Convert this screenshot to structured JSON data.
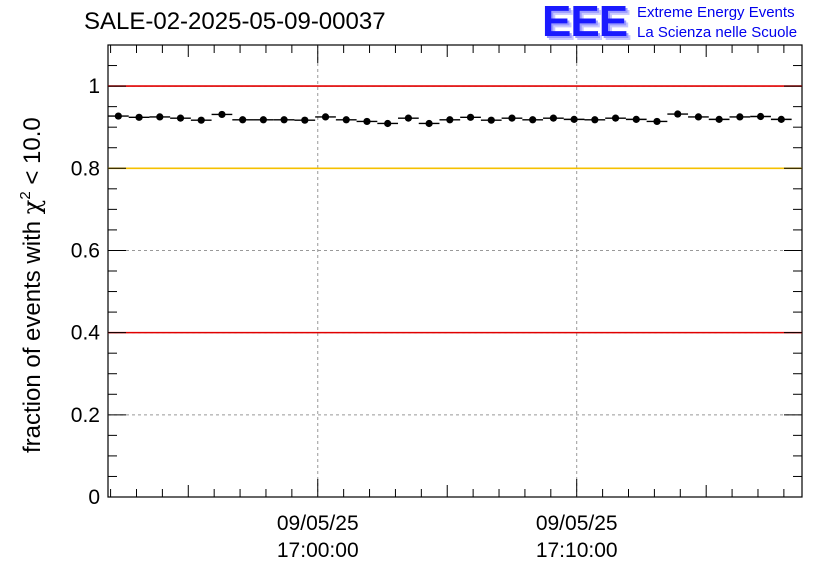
{
  "header": {
    "title": "SALE-02-2025-05-09-00037",
    "logo_text": "EEE",
    "logo_line1": "Extreme Energy Events",
    "logo_line2": "La Scienza nelle Scuole"
  },
  "chart_data": {
    "type": "scatter",
    "title": "SALE-02-2025-05-09-00037",
    "ylabel": "fraction of events with χ² < 10.0",
    "ylabel_main": "fraction of events with ",
    "ylabel_chi": "χ",
    "ylabel_sup": "2",
    "ylabel_tail": " < 10.0",
    "ylim": [
      0,
      1.1
    ],
    "xlim_minutes": [
      -8.1,
      18.7
    ],
    "yticks": [
      {
        "value": 0,
        "label": "0"
      },
      {
        "value": 0.2,
        "label": "0.2"
      },
      {
        "value": 0.4,
        "label": "0.4"
      },
      {
        "value": 0.6,
        "label": "0.6"
      },
      {
        "value": 0.8,
        "label": "0.8"
      },
      {
        "value": 1.0,
        "label": "1"
      }
    ],
    "xticks": [
      {
        "minutes": 0,
        "date": "09/05/25",
        "time": "17:00:00"
      },
      {
        "minutes": 10,
        "date": "09/05/25",
        "time": "17:10:00"
      }
    ],
    "grid": true,
    "reference_lines": [
      {
        "y": 1.0,
        "color": "#e00000"
      },
      {
        "y": 0.8,
        "color": "#f5c000"
      },
      {
        "y": 0.4,
        "color": "#e00000"
      }
    ],
    "bin_width_minutes": 0.8,
    "series": [
      {
        "name": "fraction",
        "color": "#000000",
        "x_minutes": [
          -7.7,
          -6.9,
          -6.1,
          -5.3,
          -4.5,
          -3.7,
          -2.9,
          -2.1,
          -1.3,
          -0.5,
          0.3,
          1.1,
          1.9,
          2.7,
          3.5,
          4.3,
          5.1,
          5.9,
          6.7,
          7.5,
          8.3,
          9.1,
          9.9,
          10.7,
          11.5,
          12.3,
          13.1,
          13.9,
          14.7,
          15.5,
          16.3,
          17.1,
          17.9
        ],
        "y": [
          0.927,
          0.924,
          0.925,
          0.922,
          0.917,
          0.931,
          0.918,
          0.918,
          0.918,
          0.917,
          0.925,
          0.918,
          0.914,
          0.909,
          0.922,
          0.909,
          0.918,
          0.924,
          0.917,
          0.922,
          0.918,
          0.922,
          0.919,
          0.918,
          0.922,
          0.919,
          0.914,
          0.932,
          0.925,
          0.919,
          0.925,
          0.926,
          0.919
        ]
      }
    ]
  }
}
